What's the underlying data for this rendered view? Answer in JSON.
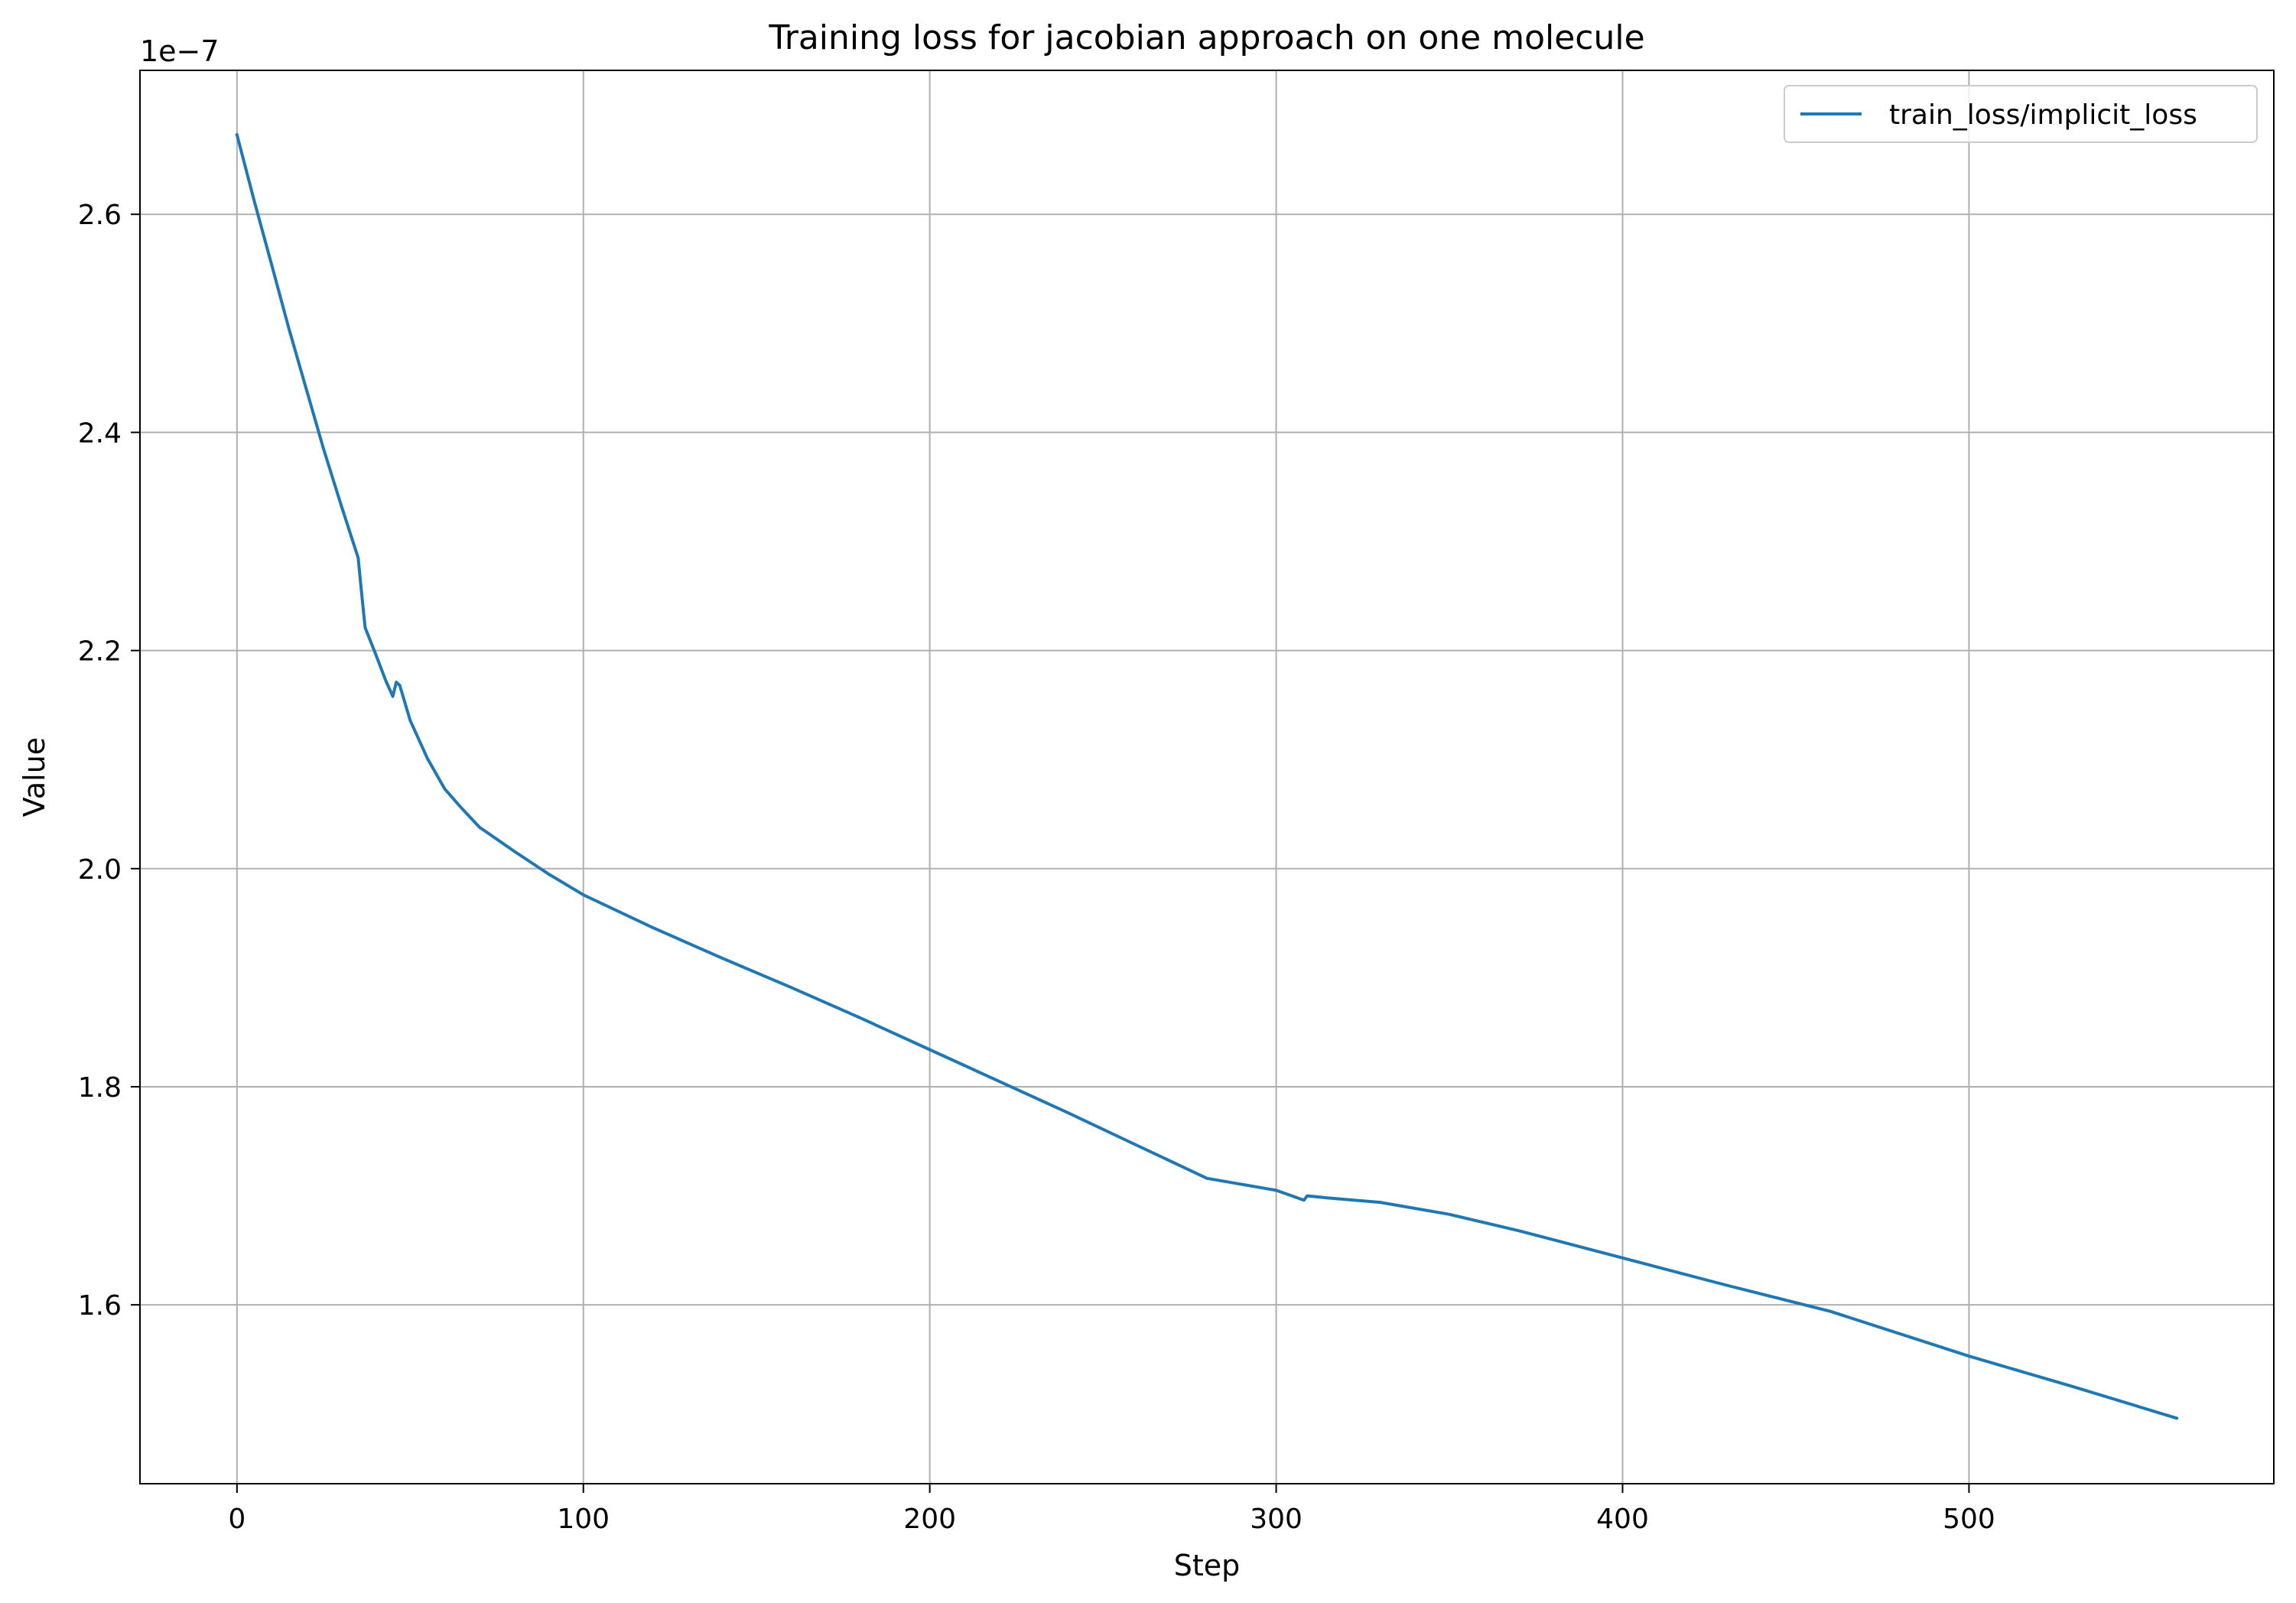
{
  "chart_data": {
    "type": "line",
    "title": "Training loss for jacobian approach on one molecule",
    "xlabel": "Step",
    "ylabel": "Value",
    "y_offset_text": "1e−7",
    "y_scale_factor": 1e-07,
    "xlim": [
      -28,
      588
    ],
    "ylim": [
      1.436,
      2.732
    ],
    "xticks": [
      0,
      100,
      200,
      300,
      400,
      500
    ],
    "xtick_labels": [
      "0",
      "100",
      "200",
      "300",
      "400",
      "500"
    ],
    "yticks": [
      1.6,
      1.8,
      2.0,
      2.2,
      2.4,
      2.6
    ],
    "ytick_labels": [
      "1.6",
      "1.8",
      "2.0",
      "2.2",
      "2.4",
      "2.6"
    ],
    "grid": true,
    "legend_position": "top-right",
    "series": [
      {
        "name": "train_loss/implicit_loss",
        "color": "#1f77b4",
        "x": [
          0,
          5,
          10,
          15,
          20,
          25,
          30,
          35,
          36,
          37,
          40,
          43,
          45,
          46,
          47,
          50,
          55,
          60,
          65,
          70,
          80,
          90,
          100,
          120,
          140,
          160,
          180,
          200,
          220,
          240,
          260,
          280,
          300,
          308,
          309,
          315,
          330,
          350,
          370,
          400,
          430,
          460,
          500,
          530,
          560
        ],
        "values": [
          2.673,
          2.612,
          2.554,
          2.495,
          2.44,
          2.385,
          2.334,
          2.285,
          2.252,
          2.221,
          2.197,
          2.172,
          2.158,
          2.171,
          2.168,
          2.136,
          2.101,
          2.073,
          2.055,
          2.038,
          2.016,
          1.995,
          1.976,
          1.946,
          1.918,
          1.891,
          1.863,
          1.834,
          1.805,
          1.776,
          1.746,
          1.716,
          1.705,
          1.696,
          1.7,
          1.698,
          1.694,
          1.683,
          1.668,
          1.643,
          1.618,
          1.594,
          1.553,
          1.525,
          1.496
        ]
      }
    ]
  }
}
